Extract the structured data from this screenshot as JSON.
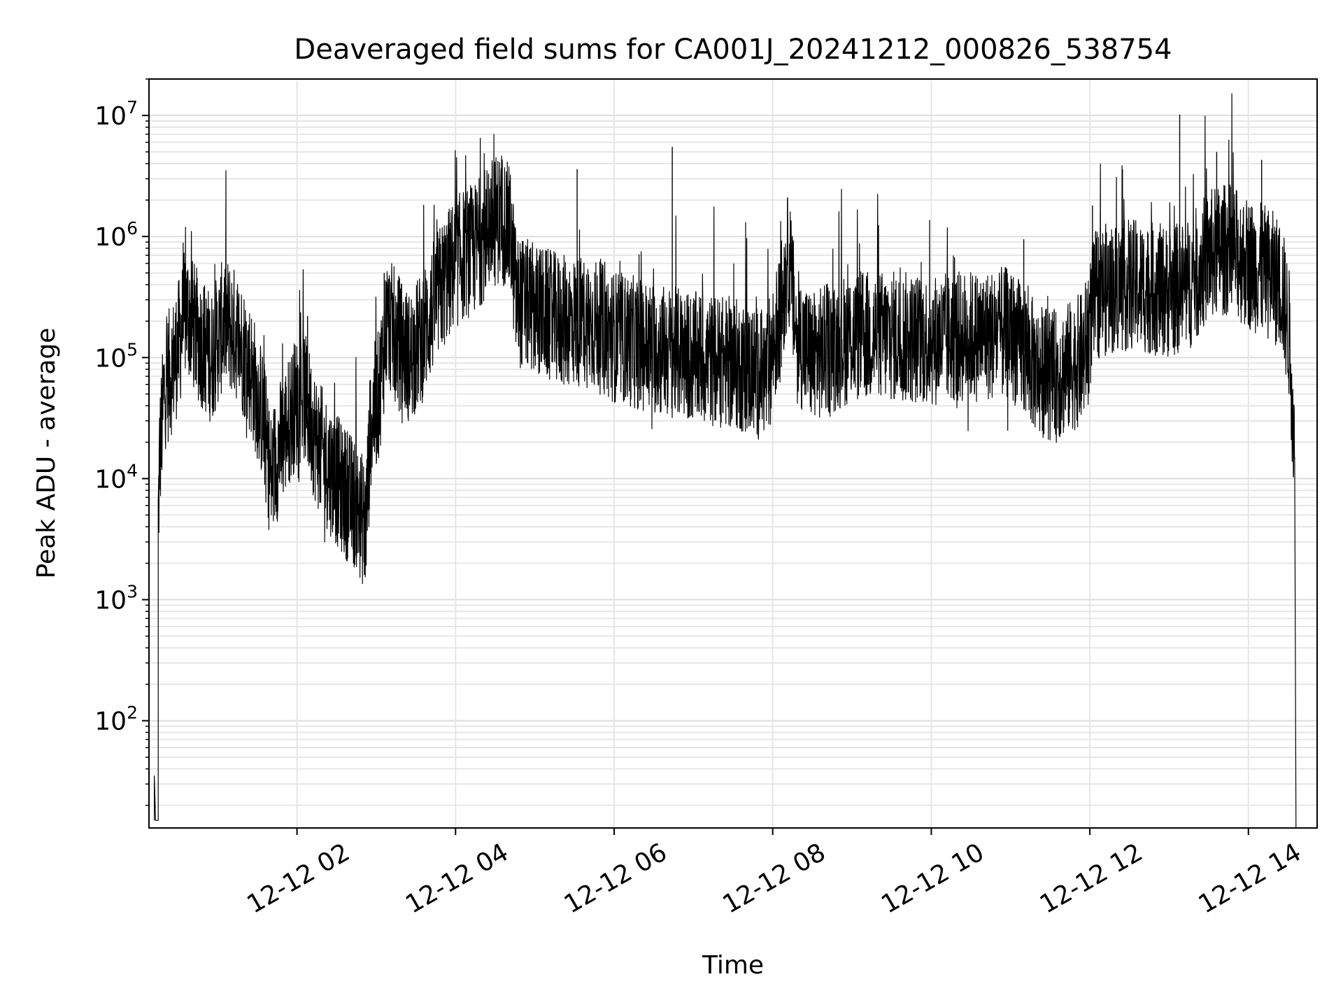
{
  "chart_data": {
    "type": "line",
    "title": "Deaveraged field sums for CA001J_20241212_000826_538754",
    "xlabel": "Time",
    "ylabel": "Peak ADU - average",
    "xscale": "time",
    "yscale": "log",
    "xlim": [
      "2024-12-12T00:08",
      "2024-12-12T14:52"
    ],
    "ylim": [
      13,
      20000000
    ],
    "grid": true,
    "line_color": "#000000",
    "x_ticks": [
      {
        "at": "2024-12-12T02:00",
        "label": "12-12 02"
      },
      {
        "at": "2024-12-12T04:00",
        "label": "12-12 04"
      },
      {
        "at": "2024-12-12T06:00",
        "label": "12-12 06"
      },
      {
        "at": "2024-12-12T08:00",
        "label": "12-12 08"
      },
      {
        "at": "2024-12-12T10:00",
        "label": "12-12 10"
      },
      {
        "at": "2024-12-12T12:00",
        "label": "12-12 12"
      },
      {
        "at": "2024-12-12T14:00",
        "label": "12-12 14"
      }
    ],
    "y_ticks": [
      {
        "value": 100,
        "base": "10",
        "exp": "2"
      },
      {
        "value": 1000,
        "base": "10",
        "exp": "3"
      },
      {
        "value": 10000,
        "base": "10",
        "exp": "4"
      },
      {
        "value": 100000,
        "base": "10",
        "exp": "5"
      },
      {
        "value": 1000000,
        "base": "10",
        "exp": "6"
      },
      {
        "value": 10000000,
        "base": "10",
        "exp": "7"
      }
    ],
    "series": [
      {
        "points": [
          [
            "2024-12-12T00:12",
            15
          ],
          [
            "2024-12-12T00:12",
            35
          ],
          [
            "2024-12-12T00:13",
            15
          ],
          [
            "2024-12-12T00:15",
            15
          ],
          [
            "2024-12-12T00:15",
            4500
          ],
          [
            "2024-12-12T00:16",
            15000
          ],
          [
            "2024-12-12T00:18",
            30000
          ],
          [
            "2024-12-12T00:20",
            60000
          ],
          [
            "2024-12-12T00:25",
            80000
          ],
          [
            "2024-12-12T00:30",
            120000
          ],
          [
            "2024-12-12T00:36",
            250000
          ],
          [
            "2024-12-12T00:45",
            150000
          ],
          [
            "2024-12-12T00:55",
            100000
          ],
          [
            "2024-12-12T01:05",
            200000
          ],
          [
            "2024-12-12T01:15",
            150000
          ],
          [
            "2024-12-12T01:25",
            80000
          ],
          [
            "2024-12-12T01:35",
            30000
          ],
          [
            "2024-12-12T01:40",
            10000
          ],
          [
            "2024-12-12T01:48",
            20000
          ],
          [
            "2024-12-12T01:58",
            40000
          ],
          [
            "2024-12-12T02:05",
            50000
          ],
          [
            "2024-12-12T02:15",
            20000
          ],
          [
            "2024-12-12T02:25",
            12000
          ],
          [
            "2024-12-12T02:35",
            8000
          ],
          [
            "2024-12-12T02:45",
            6000
          ],
          [
            "2024-12-12T02:52",
            4000
          ],
          [
            "2024-12-12T02:56",
            30000
          ],
          [
            "2024-12-12T03:02",
            50000
          ],
          [
            "2024-12-12T03:08",
            200000
          ],
          [
            "2024-12-12T03:15",
            150000
          ],
          [
            "2024-12-12T03:25",
            100000
          ],
          [
            "2024-12-12T03:35",
            150000
          ],
          [
            "2024-12-12T03:45",
            300000
          ],
          [
            "2024-12-12T03:55",
            500000
          ],
          [
            "2024-12-12T04:05",
            700000
          ],
          [
            "2024-12-12T04:15",
            800000
          ],
          [
            "2024-12-12T04:25",
            1200000
          ],
          [
            "2024-12-12T04:35",
            1500000
          ],
          [
            "2024-12-12T04:42",
            1000000
          ],
          [
            "2024-12-12T04:46",
            300000
          ],
          [
            "2024-12-12T05:00",
            250000
          ],
          [
            "2024-12-12T05:20",
            200000
          ],
          [
            "2024-12-12T05:40",
            200000
          ],
          [
            "2024-12-12T06:00",
            150000
          ],
          [
            "2024-12-12T06:30",
            120000
          ],
          [
            "2024-12-12T07:00",
            100000
          ],
          [
            "2024-12-12T07:30",
            90000
          ],
          [
            "2024-12-12T07:55",
            70000
          ],
          [
            "2024-12-12T08:05",
            200000
          ],
          [
            "2024-12-12T08:12",
            700000
          ],
          [
            "2024-12-12T08:18",
            150000
          ],
          [
            "2024-12-12T08:30",
            100000
          ],
          [
            "2024-12-12T09:00",
            150000
          ],
          [
            "2024-12-12T09:30",
            150000
          ],
          [
            "2024-12-12T10:00",
            140000
          ],
          [
            "2024-12-12T10:30",
            150000
          ],
          [
            "2024-12-12T11:00",
            160000
          ],
          [
            "2024-12-12T11:20",
            80000
          ],
          [
            "2024-12-12T11:35",
            70000
          ],
          [
            "2024-12-12T11:55",
            100000
          ],
          [
            "2024-12-12T12:05",
            350000
          ],
          [
            "2024-12-12T12:30",
            400000
          ],
          [
            "2024-12-12T13:00",
            350000
          ],
          [
            "2024-12-12T13:15",
            400000
          ],
          [
            "2024-12-12T13:30",
            700000
          ],
          [
            "2024-12-12T13:45",
            800000
          ],
          [
            "2024-12-12T14:00",
            600000
          ],
          [
            "2024-12-12T14:15",
            500000
          ],
          [
            "2024-12-12T14:25",
            400000
          ],
          [
            "2024-12-12T14:31",
            150000
          ],
          [
            "2024-12-12T14:34",
            30000
          ],
          [
            "2024-12-12T14:35",
            15000
          ],
          [
            "2024-12-12T14:36",
            10
          ],
          [
            "2024-12-12T14:37",
            10
          ]
        ],
        "spikes": [
          [
            "2024-12-12T05:32",
            3600000
          ],
          [
            "2024-12-12T06:44",
            5500000
          ],
          [
            "2024-12-12T13:08",
            10200000
          ],
          [
            "2024-12-12T13:36",
            5000000
          ],
          [
            "2024-12-12T14:10",
            4300000
          ],
          [
            "2024-12-12T04:25",
            3300000
          ],
          [
            "2024-12-12T02:45",
            2200
          ],
          [
            "2024-12-12T02:51",
            1600
          ],
          [
            "2024-12-12T02:08",
            220000
          ],
          [
            "2024-12-12T03:06",
            500000
          ],
          [
            "2024-12-12T11:10",
            950000
          ],
          [
            "2024-12-12T12:02",
            1800000
          ]
        ]
      }
    ]
  }
}
